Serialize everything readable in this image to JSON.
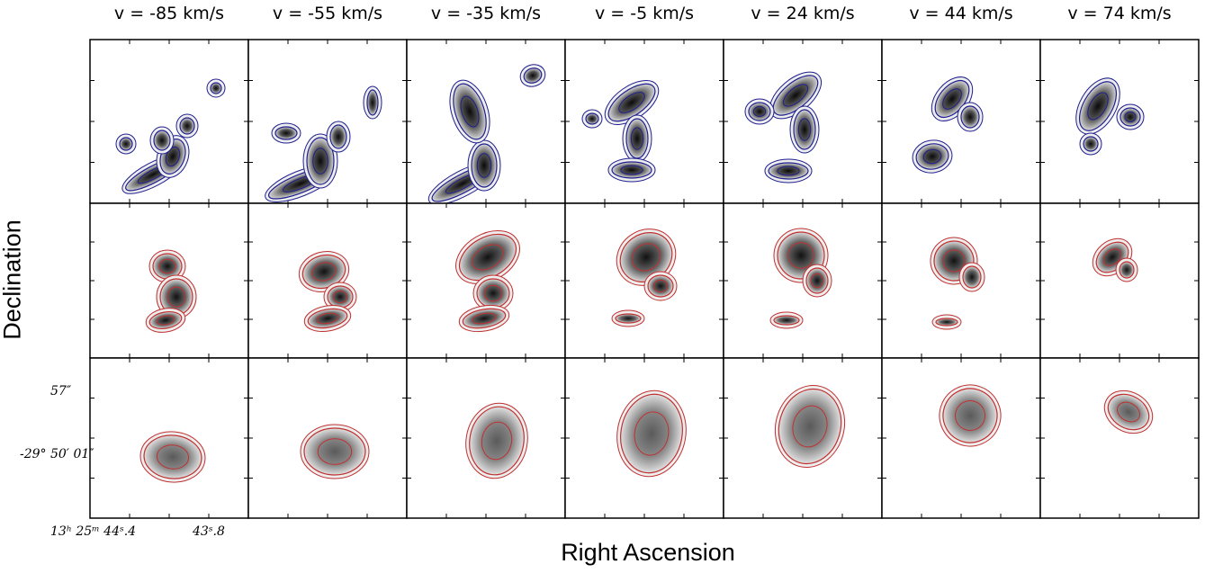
{
  "figure": {
    "velocity_labels": [
      "v = -85 km/s",
      "v = -55 km/s",
      "v = -35 km/s",
      "v = -5 km/s",
      "v = 24 km/s",
      "v = 44 km/s",
      "v = 74 km/s"
    ],
    "ylabel": "Declination",
    "xlabel": "Right Ascension",
    "dec_ticks": [
      "57″",
      "-29° 50′ 01″"
    ],
    "ra_ticks": [
      "13ʰ 25ᵐ 44ˢ.4",
      "43ˢ.8"
    ],
    "rows": 3,
    "contour_colors": [
      "#1f1f8f",
      "#c03030",
      "#c03030"
    ]
  }
}
